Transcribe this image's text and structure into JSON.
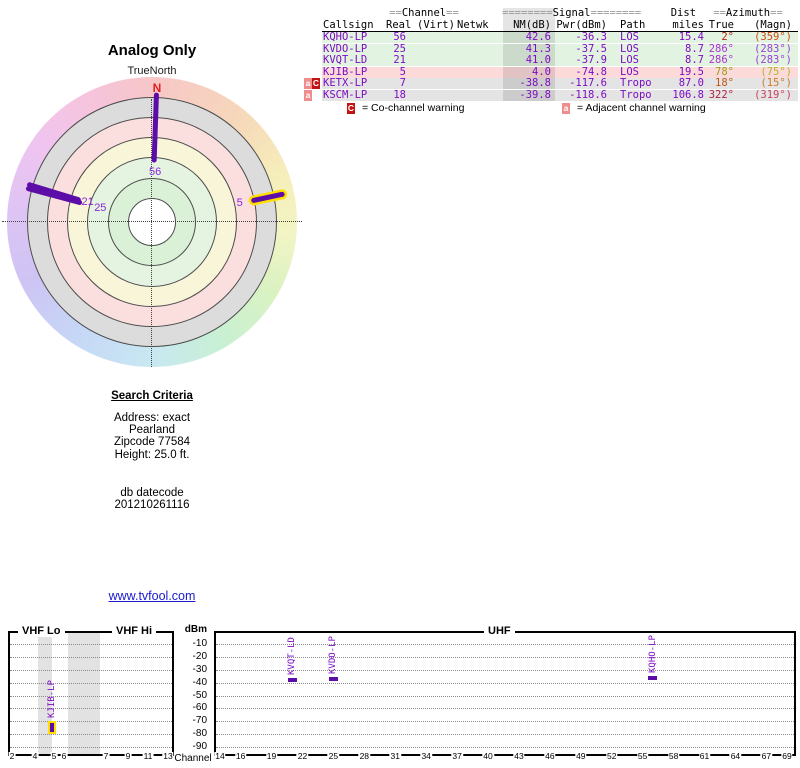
{
  "radar": {
    "title": "Analog Only",
    "north_label": "TrueNorth",
    "n_label": "N",
    "spokes": [
      {
        "label": "56",
        "azimuth": 2,
        "r_in": 62,
        "r_out": 127,
        "highlight": false
      },
      {
        "label": "25",
        "azimuth": 286,
        "r_in": 77,
        "r_out": 128,
        "highlight": false
      },
      {
        "label": "21",
        "azimuth": 286,
        "r_in": 75,
        "r_out": 128,
        "highlight": false
      },
      {
        "label": "5",
        "azimuth": 78,
        "r_in": 104,
        "r_out": 133,
        "highlight": true
      }
    ]
  },
  "table": {
    "group_headers": [
      {
        "pre": "==",
        "label": "Channel",
        "post": "=="
      },
      {
        "pre": "========",
        "label": "Signal",
        "post": "========"
      },
      {
        "pre": "",
        "label": "Dist",
        "post": ""
      },
      {
        "pre": "==",
        "label": "Azimuth",
        "post": "=="
      }
    ],
    "col_headers": [
      "Callsign",
      "Real",
      "(Virt)",
      "Netwk",
      "NM(dB)",
      "Pwr(dBm)",
      "Path",
      "miles",
      "True",
      "(Magn)"
    ],
    "rows": [
      {
        "cs": "KQHO-LP",
        "real": "56",
        "virt": "",
        "netwk": "",
        "nm": "42.6",
        "pwr": "-36.3",
        "path": "LOS",
        "miles": "15.4",
        "az_true": "2°",
        "az_magn": "(359°)",
        "bg": "green",
        "true_color": "#b02812",
        "magn_color": "#cf4a14",
        "badges": []
      },
      {
        "cs": "KVDO-LP",
        "real": "25",
        "virt": "",
        "netwk": "",
        "nm": "41.3",
        "pwr": "-37.5",
        "path": "LOS",
        "miles": "8.7",
        "az_true": "286°",
        "az_magn": "(283°)",
        "bg": "green",
        "true_color": "#ab32d2",
        "magn_color": "#9a3fd8",
        "badges": []
      },
      {
        "cs": "KVQT-LD",
        "real": "21",
        "virt": "",
        "netwk": "",
        "nm": "41.0",
        "pwr": "-37.9",
        "path": "LOS",
        "miles": "8.7",
        "az_true": "286°",
        "az_magn": "(283°)",
        "bg": "green",
        "true_color": "#ab32d2",
        "magn_color": "#9a3fd8",
        "badges": []
      },
      {
        "cs": "KJIB-LP",
        "real": "5",
        "virt": "",
        "netwk": "",
        "nm": "4.0",
        "pwr": "-74.8",
        "path": "LOS",
        "miles": "19.5",
        "az_true": "78°",
        "az_magn": "(75°)",
        "bg": "pink",
        "true_color": "#9c9c16",
        "magn_color": "#b4b428",
        "badges": []
      },
      {
        "cs": "KETX-LP",
        "real": "7",
        "virt": "",
        "netwk": "",
        "nm": "-38.8",
        "pwr": "-117.6",
        "path": "Tropo",
        "miles": "87.0",
        "az_true": "18°",
        "az_magn": "(15°)",
        "bg": "gray",
        "true_color": "#c05514",
        "magn_color": "#d27a28",
        "badges": [
          "a",
          "C"
        ]
      },
      {
        "cs": "KSCM-LP",
        "real": "18",
        "virt": "",
        "netwk": "",
        "nm": "-39.8",
        "pwr": "-118.6",
        "path": "Tropo",
        "miles": "106.8",
        "az_true": "322°",
        "az_magn": "(319°)",
        "bg": "gray",
        "true_color": "#b01e3e",
        "magn_color": "#cc3f60",
        "badges": [
          "a"
        ]
      }
    ],
    "legend": {
      "c_badge": "C",
      "c_text": "= Co-channel warning",
      "a_badge": "a",
      "a_text": "= Adjacent channel warning"
    }
  },
  "search": {
    "title": "Search Criteria",
    "lines": [
      "Address: exact",
      "Pearland",
      "Zipcode 77584",
      "Height: 25.0 ft."
    ],
    "db_lines": [
      "db datecode",
      "201210261116"
    ]
  },
  "link_text": "www.tvfool.com",
  "colors": {
    "purple": "#7d0cc4",
    "spoke": "#5c0da8",
    "highlight_yellow": "#ffdf00",
    "row_green": "#e2f3e1",
    "row_pink": "#fcdada",
    "row_gray": "#e4e4e4",
    "link_blue": "#1a1acc",
    "n_red": "#e62020"
  },
  "chart_data": [
    {
      "type": "radar",
      "title": "Analog Only",
      "orientation_label": "TrueNorth",
      "stations": [
        {
          "callsign": "KQHO-LP",
          "channel": 56,
          "azimuth_true_deg": 2,
          "nm_db": 42.6,
          "highlight": false
        },
        {
          "callsign": "KVDO-LP",
          "channel": 25,
          "azimuth_true_deg": 286,
          "nm_db": 41.3,
          "highlight": false
        },
        {
          "callsign": "KVQT-LD",
          "channel": 21,
          "azimuth_true_deg": 286,
          "nm_db": 41.0,
          "highlight": false
        },
        {
          "callsign": "KJIB-LP",
          "channel": 5,
          "azimuth_true_deg": 78,
          "nm_db": 4.0,
          "highlight": true
        }
      ]
    },
    {
      "type": "scatter",
      "title": "Signal power by channel",
      "xlabel": "Channel",
      "ylabel": "dBm",
      "ylim": [
        -95,
        0
      ],
      "y_ticks": [
        -10,
        -20,
        -30,
        -40,
        -50,
        -60,
        -70,
        -80,
        -90
      ],
      "band_labels": [
        "VHF Lo",
        "VHF Hi",
        "UHF"
      ],
      "vhf_ticks": [
        2,
        4,
        5,
        6,
        7,
        9,
        11,
        13
      ],
      "uhf_ticks": [
        14,
        16,
        19,
        22,
        25,
        28,
        31,
        34,
        37,
        40,
        43,
        46,
        49,
        52,
        55,
        58,
        61,
        64,
        67,
        69
      ],
      "points": [
        {
          "callsign": "KJIB-LP",
          "channel": 5,
          "pwr_dbm": -74.8,
          "band": "vhf",
          "highlight": true
        },
        {
          "callsign": "KVQT-LD",
          "channel": 21,
          "pwr_dbm": -37.9,
          "band": "uhf",
          "highlight": false
        },
        {
          "callsign": "KVDO-LP",
          "channel": 25,
          "pwr_dbm": -37.5,
          "band": "uhf",
          "highlight": false
        },
        {
          "callsign": "KQHO-LP",
          "channel": 56,
          "pwr_dbm": -36.3,
          "band": "uhf",
          "highlight": false
        }
      ]
    }
  ]
}
